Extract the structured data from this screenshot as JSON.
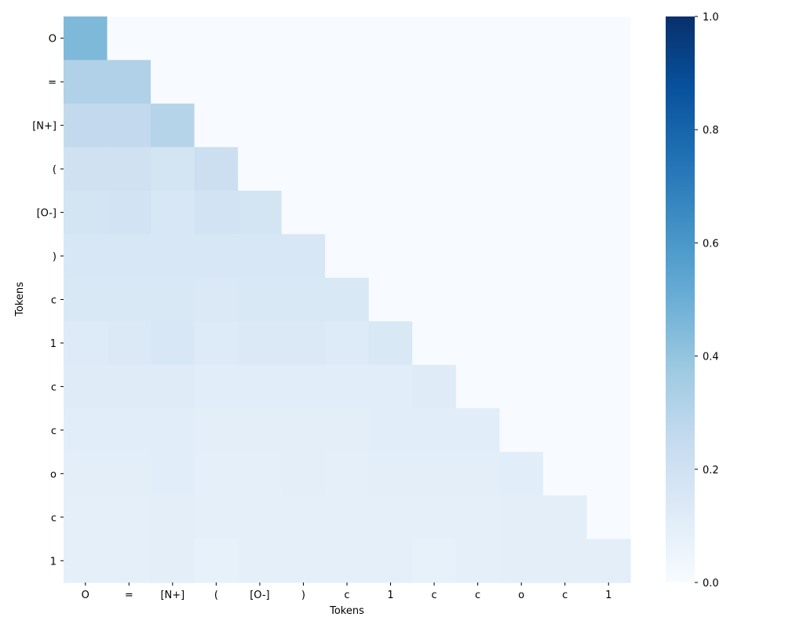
{
  "chart_data": {
    "type": "heatmap",
    "title": "",
    "xlabel": "Tokens",
    "ylabel": "Tokens",
    "x_tokens": [
      "O",
      "=",
      "[N+]",
      "(",
      "[O-]",
      ")",
      "c",
      "1",
      "c",
      "c",
      "o",
      "c",
      "1"
    ],
    "y_tokens": [
      "O",
      "=",
      "[N+]",
      "(",
      "[O-]",
      ")",
      "c",
      "1",
      "c",
      "c",
      "o",
      "c",
      "1"
    ],
    "values": [
      [
        0.45,
        0,
        0,
        0,
        0,
        0,
        0,
        0,
        0,
        0,
        0,
        0,
        0
      ],
      [
        0.32,
        0.32,
        0,
        0,
        0,
        0,
        0,
        0,
        0,
        0,
        0,
        0,
        0
      ],
      [
        0.26,
        0.26,
        0.3,
        0,
        0,
        0,
        0,
        0,
        0,
        0,
        0,
        0,
        0
      ],
      [
        0.2,
        0.2,
        0.18,
        0.22,
        0,
        0,
        0,
        0,
        0,
        0,
        0,
        0,
        0
      ],
      [
        0.18,
        0.19,
        0.16,
        0.19,
        0.18,
        0,
        0,
        0,
        0,
        0,
        0,
        0,
        0
      ],
      [
        0.16,
        0.16,
        0.16,
        0.16,
        0.16,
        0.16,
        0,
        0,
        0,
        0,
        0,
        0,
        0
      ],
      [
        0.15,
        0.15,
        0.15,
        0.14,
        0.15,
        0.15,
        0.15,
        0,
        0,
        0,
        0,
        0,
        0
      ],
      [
        0.13,
        0.14,
        0.16,
        0.13,
        0.14,
        0.14,
        0.13,
        0.15,
        0,
        0,
        0,
        0,
        0
      ],
      [
        0.12,
        0.12,
        0.12,
        0.11,
        0.11,
        0.11,
        0.11,
        0.11,
        0.12,
        0,
        0,
        0,
        0
      ],
      [
        0.11,
        0.11,
        0.11,
        0.1,
        0.1,
        0.1,
        0.1,
        0.11,
        0.11,
        0.11,
        0,
        0,
        0
      ],
      [
        0.1,
        0.1,
        0.11,
        0.09,
        0.09,
        0.1,
        0.09,
        0.1,
        0.1,
        0.1,
        0.11,
        0,
        0
      ],
      [
        0.09,
        0.09,
        0.1,
        0.09,
        0.09,
        0.09,
        0.09,
        0.09,
        0.09,
        0.09,
        0.1,
        0.1,
        0
      ],
      [
        0.09,
        0.09,
        0.1,
        0.08,
        0.09,
        0.09,
        0.09,
        0.09,
        0.08,
        0.09,
        0.1,
        0.1,
        0.1
      ]
    ],
    "colorbar": {
      "min": 0.0,
      "max": 1.0,
      "ticks": [
        0.0,
        0.2,
        0.4,
        0.6,
        0.8,
        1.0
      ],
      "tick_labels": [
        "0.0",
        "0.2",
        "0.4",
        "0.6",
        "0.8",
        "1.0"
      ],
      "colormap": "Blues",
      "color_stops": [
        "#f7fbff",
        "#deebf7",
        "#c6dbef",
        "#9ecae1",
        "#6baed6",
        "#4292c6",
        "#2171b5",
        "#08519c",
        "#08306b"
      ]
    },
    "grid": false,
    "legend": "colorbar-right"
  }
}
